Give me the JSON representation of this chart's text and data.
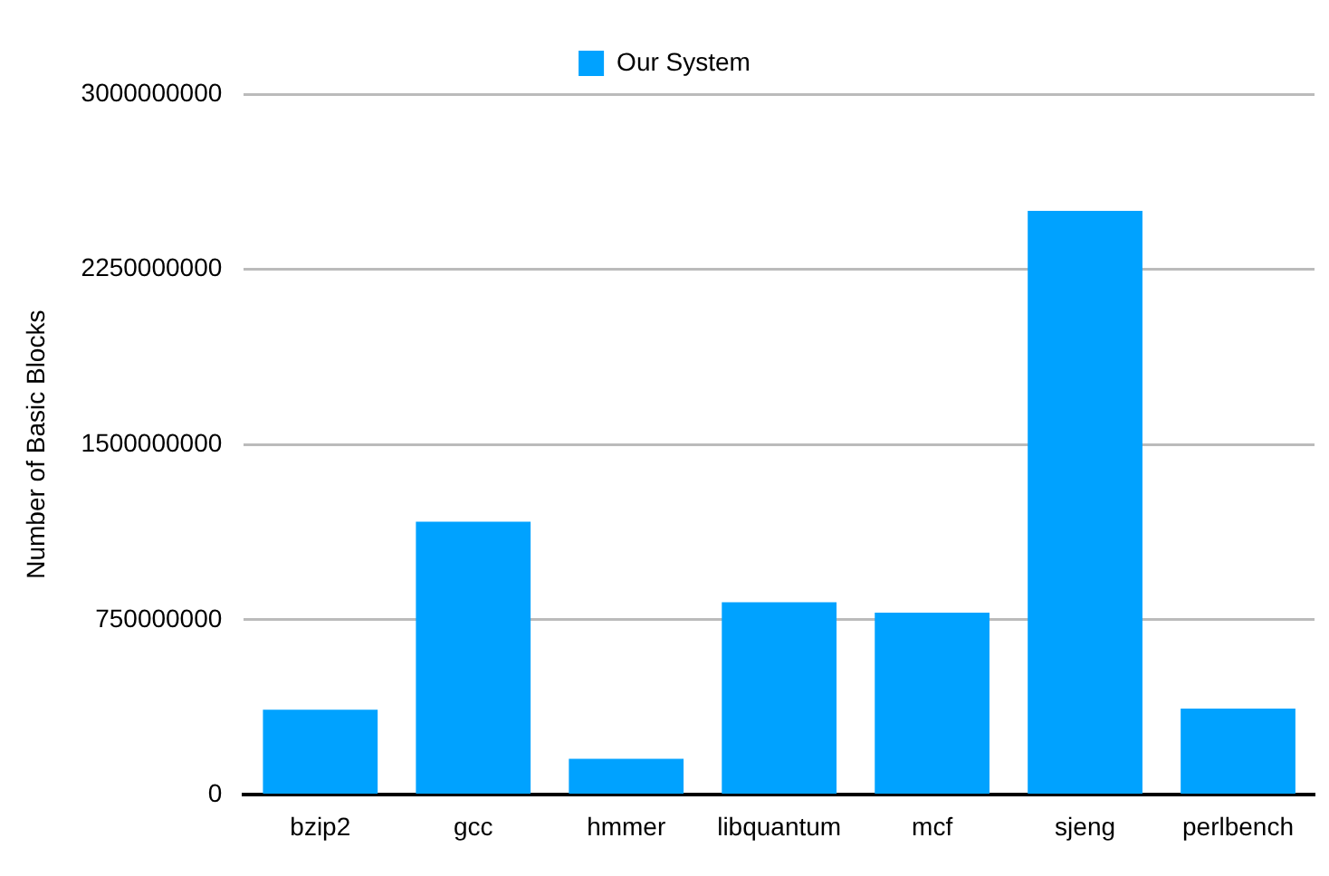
{
  "chart_data": {
    "type": "bar",
    "ylabel": "Number of Basic Blocks",
    "categories": [
      "bzip2",
      "gcc",
      "hmmer",
      "libquantum",
      "mcf",
      "sjeng",
      "perlbench"
    ],
    "series": [
      {
        "name": "Our System",
        "color": "#00a2ff",
        "values": [
          365000000,
          1170000000,
          155000000,
          825000000,
          780000000,
          2500000000,
          370000000
        ]
      }
    ],
    "ylim": [
      0,
      3000000000
    ],
    "yticks": [
      0,
      750000000,
      1500000000,
      2250000000,
      3000000000
    ],
    "grid": "y",
    "legend": "top"
  }
}
